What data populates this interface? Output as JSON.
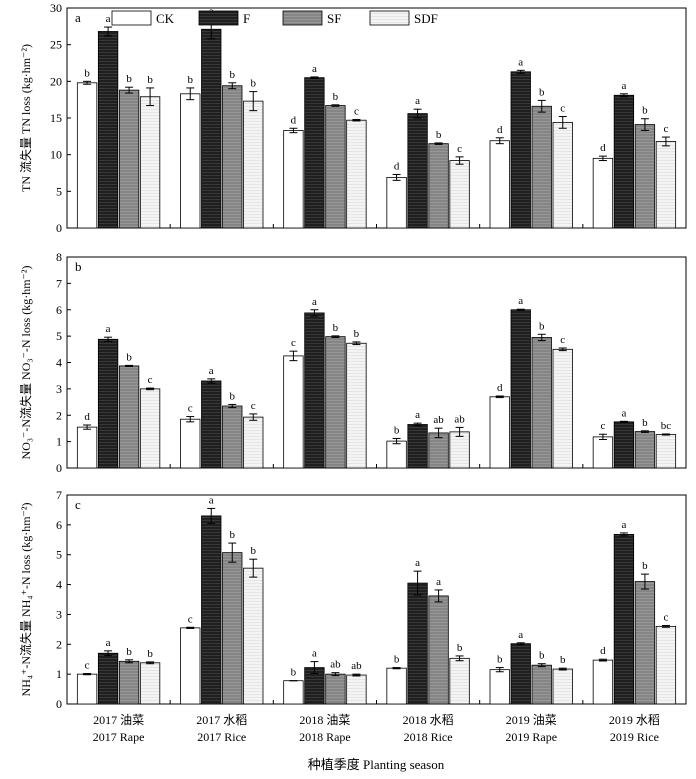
{
  "legend": {
    "items": [
      {
        "label": "CK",
        "color": "#ffffff"
      },
      {
        "label": "F",
        "color": "#262626"
      },
      {
        "label": "SF",
        "color": "#8c8c8c"
      },
      {
        "label": "SDF",
        "color": "#f2f2f2"
      }
    ]
  },
  "x_axis": {
    "label": "种植季度 Planting season",
    "seasons": [
      {
        "zh": "2017 油菜",
        "en": "2017 Rape"
      },
      {
        "zh": "2017 水稻",
        "en": "2017 Rice"
      },
      {
        "zh": "2018 油菜",
        "en": "2018 Rape"
      },
      {
        "zh": "2018 水稻",
        "en": "2018 Rice"
      },
      {
        "zh": "2019 油菜",
        "en": "2019 Rape"
      },
      {
        "zh": "2019 水稻",
        "en": "2019 Rice"
      }
    ]
  },
  "chart_data": [
    {
      "type": "bar",
      "panel": "a",
      "ylabel": "TN 流失量 TN loss (kg·hm⁻²)",
      "ylim": [
        0,
        30
      ],
      "yticks": [
        0,
        5,
        10,
        15,
        20,
        25,
        30
      ],
      "categories": [
        "2017 Rape",
        "2017 Rice",
        "2018 Rape",
        "2018 Rice",
        "2019 Rape",
        "2019 Rice"
      ],
      "series": [
        {
          "name": "CK",
          "values": [
            19.8,
            18.3,
            13.3,
            6.9,
            11.9,
            9.5
          ],
          "errors": [
            0.2,
            0.8,
            0.3,
            0.4,
            0.4,
            0.3
          ],
          "letters": [
            "b",
            "b",
            "d",
            "d",
            "d",
            "d"
          ]
        },
        {
          "name": "F",
          "values": [
            26.8,
            27.1,
            20.5,
            15.6,
            21.3,
            18.1
          ],
          "errors": [
            0.6,
            1.3,
            0.1,
            0.6,
            0.2,
            0.2
          ],
          "letters": [
            "a",
            "a",
            "a",
            "a",
            "a",
            "a"
          ]
        },
        {
          "name": "SF",
          "values": [
            18.8,
            19.4,
            16.7,
            11.5,
            16.6,
            14.1
          ],
          "errors": [
            0.4,
            0.4,
            0.1,
            0.1,
            0.8,
            0.8
          ],
          "letters": [
            "b",
            "b",
            "b",
            "b",
            "b",
            "b"
          ]
        },
        {
          "name": "SDF",
          "values": [
            17.9,
            17.3,
            14.7,
            9.2,
            14.4,
            11.8
          ],
          "errors": [
            1.2,
            1.3,
            0.1,
            0.5,
            0.8,
            0.6
          ],
          "letters": [
            "b",
            "b",
            "c",
            "c",
            "c",
            "c"
          ]
        }
      ]
    },
    {
      "type": "bar",
      "panel": "b",
      "ylabel": "NO₃⁻-N流失量 NO₃⁻-N loss (kg·hm⁻²)",
      "ylim": [
        0,
        8
      ],
      "yticks": [
        0,
        1,
        2,
        3,
        4,
        5,
        6,
        7,
        8
      ],
      "categories": [
        "2017 Rape",
        "2017 Rice",
        "2018 Rape",
        "2018 Rice",
        "2019 Rape",
        "2019 Rice"
      ],
      "series": [
        {
          "name": "CK",
          "values": [
            1.55,
            1.85,
            4.25,
            1.02,
            2.7,
            1.18
          ],
          "errors": [
            0.08,
            0.1,
            0.18,
            0.1,
            0.03,
            0.1
          ],
          "letters": [
            "d",
            "c",
            "c",
            "b",
            "d",
            "c"
          ]
        },
        {
          "name": "F",
          "values": [
            4.88,
            3.3,
            5.88,
            1.65,
            6.0,
            1.75
          ],
          "errors": [
            0.08,
            0.08,
            0.12,
            0.05,
            0.02,
            0.02
          ],
          "letters": [
            "a",
            "a",
            "a",
            "a",
            "a",
            "a"
          ]
        },
        {
          "name": "SF",
          "values": [
            3.87,
            2.35,
            4.98,
            1.33,
            4.95,
            1.38
          ],
          "errors": [
            0.02,
            0.06,
            0.03,
            0.18,
            0.12,
            0.03
          ],
          "letters": [
            "b",
            "b",
            "b",
            "ab",
            "b",
            "b"
          ]
        },
        {
          "name": "SDF",
          "values": [
            3.0,
            1.93,
            4.73,
            1.37,
            4.5,
            1.27
          ],
          "errors": [
            0.03,
            0.12,
            0.05,
            0.17,
            0.05,
            0.02
          ],
          "letters": [
            "c",
            "c",
            "b",
            "ab",
            "c",
            "bc"
          ]
        }
      ]
    },
    {
      "type": "bar",
      "panel": "c",
      "ylabel": "NH₄⁺-N流失量 NH₄⁺-N loss (kg·hm⁻²)",
      "ylim": [
        0,
        7
      ],
      "yticks": [
        0,
        1,
        2,
        3,
        4,
        5,
        6,
        7
      ],
      "categories": [
        "2017 Rape",
        "2017 Rice",
        "2018 Rape",
        "2018 Rice",
        "2019 Rape",
        "2019 Rice"
      ],
      "series": [
        {
          "name": "CK",
          "values": [
            1.0,
            2.55,
            0.78,
            1.2,
            1.15,
            1.47
          ],
          "errors": [
            0.02,
            0.02,
            0.0,
            0.02,
            0.07,
            0.03
          ],
          "letters": [
            "c",
            "c",
            "b",
            "b",
            "b",
            "d"
          ]
        },
        {
          "name": "F",
          "values": [
            1.7,
            6.3,
            1.22,
            4.05,
            2.02,
            5.68
          ],
          "errors": [
            0.08,
            0.25,
            0.2,
            0.4,
            0.03,
            0.05
          ],
          "letters": [
            "a",
            "a",
            "a",
            "a",
            "a",
            "a"
          ]
        },
        {
          "name": "SF",
          "values": [
            1.43,
            5.07,
            1.0,
            3.62,
            1.3,
            4.1
          ],
          "errors": [
            0.05,
            0.32,
            0.05,
            0.2,
            0.05,
            0.25
          ],
          "letters": [
            "b",
            "b",
            "ab",
            "a",
            "b",
            "b"
          ]
        },
        {
          "name": "SDF",
          "values": [
            1.38,
            4.55,
            0.97,
            1.53,
            1.17,
            2.6
          ],
          "errors": [
            0.03,
            0.3,
            0.03,
            0.08,
            0.03,
            0.03
          ],
          "letters": [
            "b",
            "b",
            "ab",
            "b",
            "b",
            "c"
          ]
        }
      ]
    }
  ]
}
